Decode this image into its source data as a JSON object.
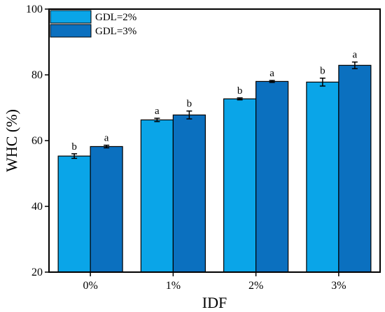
{
  "chart_data": {
    "type": "bar",
    "categories": [
      "0%",
      "1%",
      "2%",
      "3%"
    ],
    "xlabel": "IDF",
    "ylabel": "WHC (%)",
    "ylim": [
      20,
      100
    ],
    "yticks": [
      "20",
      "40",
      "60",
      "80",
      "100"
    ],
    "legend_position": "top-left",
    "grid": false,
    "series": [
      {
        "name": "GDL=2%",
        "color": "#0aa5e8",
        "values": [
          55.3,
          66.3,
          72.7,
          77.8
        ],
        "errors": [
          0.7,
          0.5,
          0.3,
          1.2
        ],
        "labels": [
          "b",
          "a",
          "b",
          "b"
        ]
      },
      {
        "name": "GDL=3%",
        "color": "#0b70bf",
        "values": [
          58.2,
          67.8,
          78.0,
          82.9
        ],
        "errors": [
          0.4,
          1.2,
          0.3,
          1.0
        ],
        "labels": [
          "a",
          "b",
          "a",
          "a"
        ]
      }
    ]
  }
}
